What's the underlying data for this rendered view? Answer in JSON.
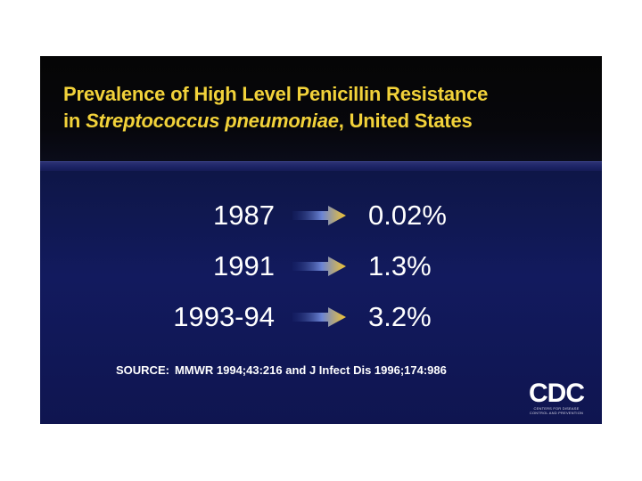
{
  "slide": {
    "title_line1": "Prevalence of High Level Penicillin Resistance",
    "title_line2_prefix": "in ",
    "title_line2_italic": "Streptococcus pneumoniae",
    "title_line2_suffix": ", United States",
    "rows": [
      {
        "year": "1987",
        "value": "0.02%"
      },
      {
        "year": "1991",
        "value": "1.3%"
      },
      {
        "year": "1993-94",
        "value": "3.2%"
      }
    ],
    "source_label": "SOURCE:",
    "source_text": "MMWR 1994;43:216 and J Infect Dis 1996;174:986",
    "logo_mark": "CDC",
    "logo_tagline": "CENTERS FOR DISEASE CONTROL AND PREVENTION"
  },
  "colors": {
    "title": "#f2d23a",
    "background": "#121a5e",
    "arrow": "#f2c531"
  },
  "icons": {
    "arrow": "right-arrow-icon"
  }
}
